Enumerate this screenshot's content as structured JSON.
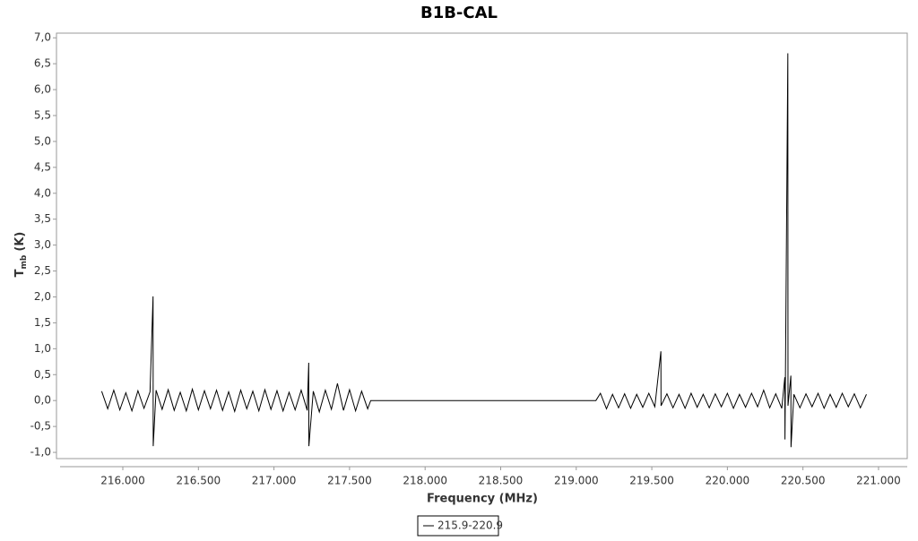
{
  "chart_data": {
    "type": "line",
    "title": "B1B-CAL",
    "x_label": "Frequency (MHz)",
    "y_label": "T",
    "y_label_sub": "mb",
    "y_label_unit": "(K)",
    "xlim": [
      215.561,
      221.19
    ],
    "ylim": [
      -1.12,
      7.09
    ],
    "xticks": [
      {
        "value": 216,
        "label": "216.000"
      },
      {
        "value": 216.5,
        "label": "216.500"
      },
      {
        "value": 217,
        "label": "217.000"
      },
      {
        "value": 217.5,
        "label": "217.500"
      },
      {
        "value": 218,
        "label": "218.000"
      },
      {
        "value": 218.5,
        "label": "218.500"
      },
      {
        "value": 219,
        "label": "219.000"
      },
      {
        "value": 219.5,
        "label": "219.500"
      },
      {
        "value": 220,
        "label": "220.000"
      },
      {
        "value": 220.5,
        "label": "220.500"
      },
      {
        "value": 221,
        "label": "221.000"
      }
    ],
    "yticks": [
      {
        "value": -1,
        "label": "-1,0"
      },
      {
        "value": -0.5,
        "label": "-0,5"
      },
      {
        "value": 0,
        "label": "0,0"
      },
      {
        "value": 0.5,
        "label": "0,5"
      },
      {
        "value": 1,
        "label": "1,0"
      },
      {
        "value": 1.5,
        "label": "1,5"
      },
      {
        "value": 2,
        "label": "2,0"
      },
      {
        "value": 2.5,
        "label": "2,5"
      },
      {
        "value": 3,
        "label": "3,0"
      },
      {
        "value": 3.5,
        "label": "3,5"
      },
      {
        "value": 4,
        "label": "4,0"
      },
      {
        "value": 4.5,
        "label": "4,5"
      },
      {
        "value": 5,
        "label": "5,0"
      },
      {
        "value": 5.5,
        "label": "5,5"
      },
      {
        "value": 6,
        "label": "6,0"
      },
      {
        "value": 6.5,
        "label": "6,5"
      },
      {
        "value": 7,
        "label": "7,0"
      }
    ],
    "grid": false,
    "legend": "bottom",
    "x": [
      215.86,
      215.9,
      215.94,
      215.98,
      216.02,
      216.06,
      216.1,
      216.14,
      216.18,
      216.2,
      216.201,
      216.22,
      216.26,
      216.3,
      216.34,
      216.38,
      216.42,
      216.46,
      216.5,
      216.54,
      216.58,
      216.62,
      216.66,
      216.7,
      216.74,
      216.78,
      216.82,
      216.86,
      216.9,
      216.94,
      216.98,
      217.02,
      217.06,
      217.1,
      217.14,
      217.18,
      217.22,
      217.23,
      217.231,
      217.26,
      217.3,
      217.34,
      217.38,
      217.42,
      217.46,
      217.5,
      217.54,
      217.58,
      217.62,
      217.64,
      219.13,
      219.16,
      219.2,
      219.24,
      219.28,
      219.32,
      219.36,
      219.4,
      219.44,
      219.48,
      219.52,
      219.56,
      219.561,
      219.6,
      219.64,
      219.68,
      219.72,
      219.76,
      219.8,
      219.84,
      219.88,
      219.92,
      219.96,
      220.0,
      220.04,
      220.08,
      220.12,
      220.16,
      220.2,
      220.24,
      220.28,
      220.32,
      220.36,
      220.38,
      220.381,
      220.4,
      220.401,
      220.42,
      220.421,
      220.44,
      220.48,
      220.52,
      220.56,
      220.6,
      220.64,
      220.68,
      220.72,
      220.76,
      220.8,
      220.84,
      220.88,
      220.92
    ],
    "series": [
      {
        "name": "215.9-220.9",
        "color": "#000000",
        "values": [
          0.18,
          -0.16,
          0.2,
          -0.18,
          0.15,
          -0.2,
          0.19,
          -0.15,
          0.17,
          2.01,
          -0.88,
          0.2,
          -0.17,
          0.21,
          -0.19,
          0.16,
          -0.2,
          0.22,
          -0.18,
          0.19,
          -0.16,
          0.2,
          -0.19,
          0.17,
          -0.21,
          0.2,
          -0.16,
          0.18,
          -0.2,
          0.21,
          -0.17,
          0.19,
          -0.2,
          0.16,
          -0.18,
          0.2,
          -0.19,
          0.73,
          -0.88,
          0.18,
          -0.22,
          0.2,
          -0.17,
          0.33,
          -0.19,
          0.21,
          -0.2,
          0.18,
          -0.16,
          0.0,
          0.0,
          0.14,
          -0.16,
          0.12,
          -0.14,
          0.13,
          -0.15,
          0.12,
          -0.13,
          0.14,
          -0.12,
          0.95,
          -0.1,
          0.13,
          -0.14,
          0.12,
          -0.15,
          0.14,
          -0.13,
          0.12,
          -0.14,
          0.13,
          -0.12,
          0.14,
          -0.15,
          0.12,
          -0.13,
          0.14,
          -0.12,
          0.2,
          -0.14,
          0.13,
          -0.15,
          0.45,
          -0.75,
          6.7,
          -0.1,
          0.48,
          -0.9,
          0.12,
          -0.14,
          0.13,
          -0.12,
          0.14,
          -0.15,
          0.12,
          -0.13,
          0.14,
          -0.12,
          0.13,
          -0.14,
          0.12
        ]
      }
    ]
  }
}
